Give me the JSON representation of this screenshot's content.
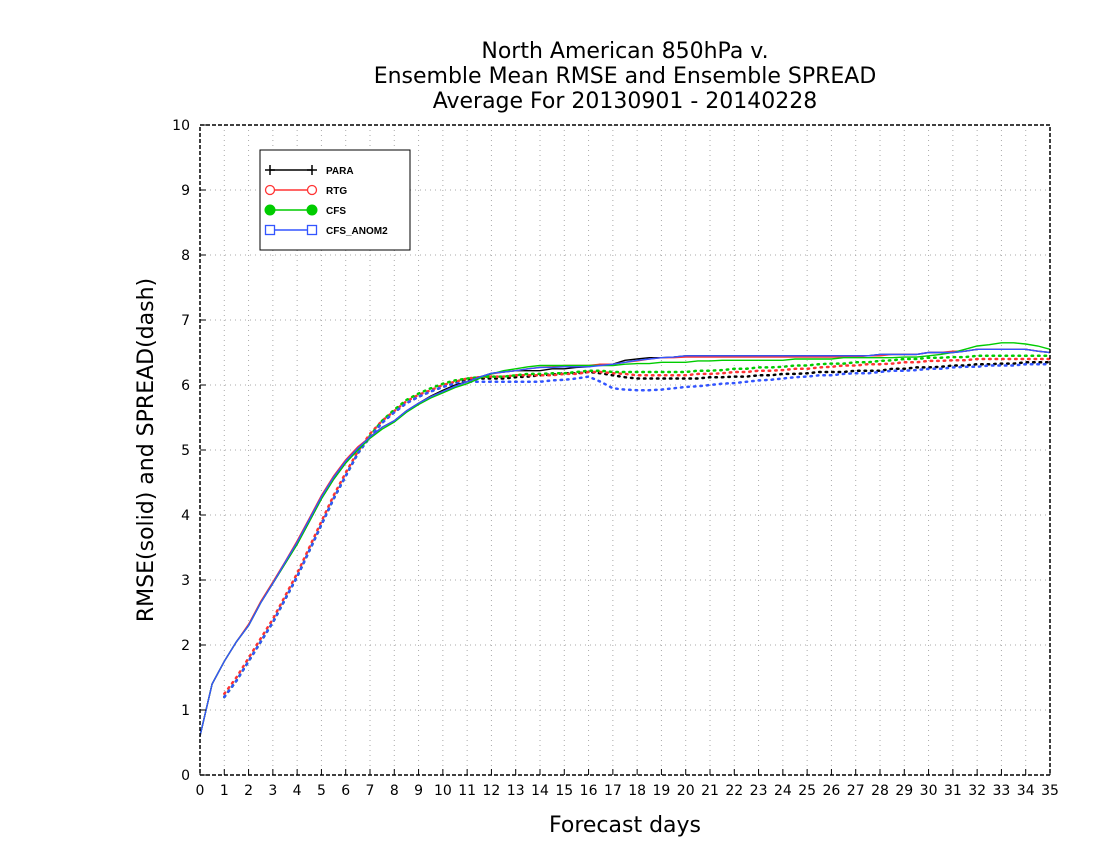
{
  "chart_data": {
    "type": "line",
    "title": [
      "North American 850hPa v.",
      "Ensemble Mean RMSE and Ensemble SPREAD",
      "Average For 20130901 - 20140228"
    ],
    "xlabel": "Forecast days",
    "ylabel": "RMSE(solid) and SPREAD(dash)",
    "xlim": [
      0,
      35
    ],
    "ylim": [
      0,
      10
    ],
    "xticks": [
      0,
      1,
      2,
      3,
      4,
      5,
      6,
      7,
      8,
      9,
      10,
      11,
      12,
      13,
      14,
      15,
      16,
      17,
      18,
      19,
      20,
      21,
      22,
      23,
      24,
      25,
      26,
      27,
      28,
      29,
      30,
      31,
      32,
      33,
      34,
      35
    ],
    "yticks": [
      0,
      1,
      2,
      3,
      4,
      5,
      6,
      7,
      8,
      9,
      10
    ],
    "grid": true,
    "legend_position": "top-left",
    "x": [
      0,
      0.5,
      1,
      1.5,
      2,
      2.5,
      3,
      3.5,
      4,
      4.5,
      5,
      5.5,
      6,
      6.5,
      7,
      7.5,
      8,
      8.5,
      9,
      9.5,
      10,
      10.5,
      11,
      11.5,
      12,
      12.5,
      13,
      13.5,
      14,
      14.5,
      15,
      15.5,
      16,
      16.5,
      17,
      17.5,
      18,
      18.5,
      19,
      19.5,
      20,
      20.5,
      21,
      21.5,
      22,
      22.5,
      23,
      23.5,
      24,
      24.5,
      25,
      25.5,
      26,
      26.5,
      27,
      27.5,
      28,
      28.5,
      29,
      29.5,
      30,
      30.5,
      31,
      31.5,
      32,
      32.5,
      33,
      33.5,
      34,
      34.5,
      35
    ],
    "series": [
      {
        "name": "PARA",
        "color": "#000000",
        "marker": "plus",
        "rmse": [
          0.6,
          1.4,
          1.75,
          2.05,
          2.3,
          2.65,
          2.95,
          3.25,
          3.55,
          3.9,
          4.25,
          4.55,
          4.8,
          5.02,
          5.2,
          5.35,
          5.45,
          5.6,
          5.72,
          5.83,
          5.92,
          6.0,
          6.05,
          6.12,
          6.18,
          6.2,
          6.22,
          6.22,
          6.22,
          6.25,
          6.25,
          6.27,
          6.28,
          6.32,
          6.32,
          6.38,
          6.4,
          6.42,
          6.42,
          6.43,
          6.45,
          6.45,
          6.45,
          6.45,
          6.45,
          6.45,
          6.45,
          6.45,
          6.45,
          6.45,
          6.45,
          6.45,
          6.45,
          6.45,
          6.45,
          6.45,
          6.47,
          6.47,
          6.47,
          6.47,
          6.5,
          6.5,
          6.5,
          6.52,
          6.55,
          6.55,
          6.55,
          6.55,
          6.55,
          6.52,
          6.5
        ],
        "spread": [
          null,
          null,
          1.2,
          1.45,
          1.75,
          2.05,
          2.35,
          2.7,
          3.05,
          3.45,
          3.85,
          4.25,
          4.6,
          4.95,
          5.2,
          5.42,
          5.58,
          5.72,
          5.82,
          5.9,
          5.97,
          6.03,
          6.07,
          6.1,
          6.1,
          6.1,
          6.12,
          6.13,
          6.15,
          6.16,
          6.18,
          6.18,
          6.2,
          6.18,
          6.15,
          6.12,
          6.1,
          6.1,
          6.1,
          6.1,
          6.1,
          6.1,
          6.12,
          6.12,
          6.13,
          6.13,
          6.15,
          6.15,
          6.17,
          6.17,
          6.18,
          6.2,
          6.2,
          6.2,
          6.22,
          6.22,
          6.22,
          6.25,
          6.25,
          6.27,
          6.27,
          6.28,
          6.3,
          6.3,
          6.32,
          6.32,
          6.33,
          6.33,
          6.35,
          6.35,
          6.35
        ]
      },
      {
        "name": "RTG",
        "color": "#ff3333",
        "marker": "open-circle",
        "rmse": [
          0.6,
          1.4,
          1.75,
          2.05,
          2.32,
          2.67,
          2.97,
          3.28,
          3.6,
          3.95,
          4.3,
          4.6,
          4.85,
          5.05,
          5.2,
          5.35,
          5.45,
          5.6,
          5.72,
          5.82,
          5.9,
          5.98,
          6.05,
          6.12,
          6.17,
          6.2,
          6.22,
          6.25,
          6.27,
          6.28,
          6.3,
          6.3,
          6.3,
          6.32,
          6.32,
          6.35,
          6.37,
          6.4,
          6.42,
          6.42,
          6.43,
          6.43,
          6.43,
          6.43,
          6.43,
          6.43,
          6.43,
          6.43,
          6.43,
          6.43,
          6.43,
          6.43,
          6.43,
          6.43,
          6.43,
          6.45,
          6.45,
          6.47,
          6.47,
          6.47,
          6.5,
          6.5,
          6.52,
          6.52,
          6.55,
          6.55,
          6.55,
          6.55,
          6.55,
          6.52,
          6.5
        ],
        "spread": [
          null,
          null,
          1.25,
          1.5,
          1.8,
          2.1,
          2.4,
          2.75,
          3.1,
          3.5,
          3.9,
          4.3,
          4.65,
          4.98,
          5.25,
          5.45,
          5.6,
          5.75,
          5.85,
          5.92,
          6.0,
          6.05,
          6.1,
          6.12,
          6.13,
          6.13,
          6.15,
          6.15,
          6.15,
          6.15,
          6.17,
          6.17,
          6.2,
          6.2,
          6.18,
          6.17,
          6.15,
          6.15,
          6.15,
          6.15,
          6.15,
          6.17,
          6.17,
          6.18,
          6.2,
          6.2,
          6.22,
          6.22,
          6.23,
          6.25,
          6.25,
          6.27,
          6.28,
          6.3,
          6.3,
          6.32,
          6.32,
          6.33,
          6.35,
          6.35,
          6.37,
          6.37,
          6.38,
          6.38,
          6.4,
          6.4,
          6.4,
          6.4,
          6.4,
          6.4,
          6.4
        ]
      },
      {
        "name": "CFS",
        "color": "#00cc00",
        "marker": "filled-circle",
        "rmse": [
          0.6,
          1.4,
          1.75,
          2.05,
          2.3,
          2.65,
          2.95,
          3.25,
          3.55,
          3.9,
          4.25,
          4.55,
          4.8,
          5.0,
          5.18,
          5.32,
          5.43,
          5.58,
          5.7,
          5.8,
          5.88,
          5.96,
          6.02,
          6.1,
          6.17,
          6.22,
          6.25,
          6.28,
          6.3,
          6.3,
          6.3,
          6.3,
          6.3,
          6.3,
          6.3,
          6.32,
          6.33,
          6.33,
          6.35,
          6.35,
          6.35,
          6.37,
          6.37,
          6.38,
          6.38,
          6.38,
          6.38,
          6.38,
          6.38,
          6.4,
          6.4,
          6.4,
          6.4,
          6.42,
          6.42,
          6.42,
          6.42,
          6.42,
          6.43,
          6.43,
          6.45,
          6.47,
          6.5,
          6.55,
          6.6,
          6.62,
          6.65,
          6.65,
          6.63,
          6.6,
          6.55
        ],
        "spread": [
          null,
          null,
          1.2,
          1.45,
          1.75,
          2.05,
          2.35,
          2.7,
          3.05,
          3.45,
          3.85,
          4.25,
          4.6,
          4.95,
          5.22,
          5.45,
          5.62,
          5.77,
          5.87,
          5.95,
          6.02,
          6.07,
          6.1,
          6.12,
          6.13,
          6.13,
          6.15,
          6.17,
          6.17,
          6.18,
          6.18,
          6.2,
          6.22,
          6.22,
          6.2,
          6.2,
          6.2,
          6.2,
          6.2,
          6.2,
          6.2,
          6.22,
          6.22,
          6.23,
          6.25,
          6.25,
          6.27,
          6.27,
          6.28,
          6.3,
          6.3,
          6.32,
          6.33,
          6.33,
          6.35,
          6.35,
          6.37,
          6.38,
          6.4,
          6.4,
          6.42,
          6.42,
          6.43,
          6.43,
          6.45,
          6.45,
          6.45,
          6.45,
          6.45,
          6.45,
          6.45
        ]
      },
      {
        "name": "CFS_ANOM2",
        "color": "#3355ff",
        "marker": "open-square",
        "rmse": [
          0.6,
          1.4,
          1.75,
          2.05,
          2.3,
          2.65,
          2.95,
          3.27,
          3.58,
          3.93,
          4.28,
          4.58,
          4.83,
          5.03,
          5.2,
          5.35,
          5.45,
          5.6,
          5.72,
          5.82,
          5.9,
          5.98,
          6.05,
          6.12,
          6.18,
          6.2,
          6.22,
          6.25,
          6.27,
          6.27,
          6.28,
          6.28,
          6.28,
          6.3,
          6.32,
          6.35,
          6.38,
          6.4,
          6.42,
          6.43,
          6.45,
          6.45,
          6.45,
          6.45,
          6.45,
          6.45,
          6.45,
          6.45,
          6.45,
          6.45,
          6.45,
          6.45,
          6.45,
          6.45,
          6.45,
          6.45,
          6.47,
          6.47,
          6.47,
          6.47,
          6.5,
          6.5,
          6.5,
          6.52,
          6.55,
          6.55,
          6.55,
          6.55,
          6.55,
          6.52,
          6.5
        ],
        "spread": [
          null,
          null,
          1.2,
          1.45,
          1.75,
          2.05,
          2.35,
          2.7,
          3.05,
          3.45,
          3.85,
          4.25,
          4.6,
          4.95,
          5.2,
          5.42,
          5.58,
          5.72,
          5.82,
          5.9,
          5.97,
          6.02,
          6.05,
          6.05,
          6.05,
          6.05,
          6.05,
          6.05,
          6.05,
          6.07,
          6.08,
          6.1,
          6.13,
          6.05,
          5.95,
          5.93,
          5.92,
          5.92,
          5.93,
          5.95,
          5.97,
          5.98,
          6.0,
          6.02,
          6.03,
          6.05,
          6.07,
          6.08,
          6.1,
          6.12,
          6.13,
          6.15,
          6.15,
          6.17,
          6.18,
          6.18,
          6.2,
          6.22,
          6.22,
          6.23,
          6.25,
          6.25,
          6.27,
          6.28,
          6.28,
          6.3,
          6.3,
          6.3,
          6.32,
          6.32,
          6.32
        ]
      }
    ]
  }
}
